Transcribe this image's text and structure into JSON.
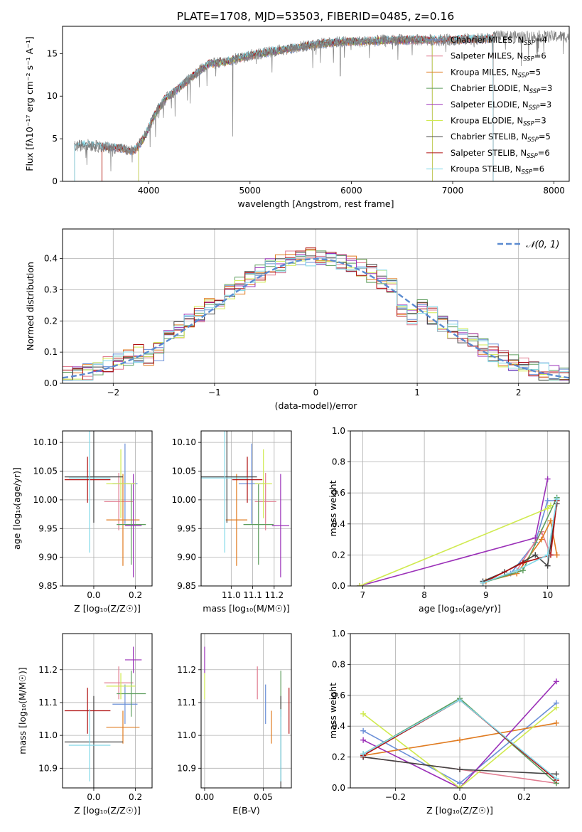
{
  "title": "PLATE=1708, MJD=53503, FIBERID=0485, z=0.16",
  "colors": {
    "chabrier_miles": "#6a8fd8",
    "salpeter_miles": "#e07b8f",
    "kroupa_miles": "#e07b20",
    "chabrier_elodie": "#5e9e5e",
    "salpeter_elodie": "#9b30b8",
    "kroupa_elodie": "#d0ea50",
    "chabrier_stelib": "#444444",
    "salpeter_stelib": "#b01010",
    "kroupa_stelib": "#80d8e8",
    "gaussian": "#5b8bd0"
  },
  "chart_data": [
    {
      "id": "spectrum",
      "type": "line",
      "title": "PLATE=1708, MJD=53503, FIBERID=0485, z=0.16",
      "xlabel": "wavelength [Angstrom, rest frame]",
      "ylabel": "Flux [fλ10⁻¹⁷ erg cm⁻² s⁻¹ A⁻¹]",
      "xlim": [
        3150,
        8150
      ],
      "ylim": [
        0,
        18.2
      ],
      "xticks": [
        4000,
        5000,
        6000,
        7000,
        8000
      ],
      "yticks": [
        0,
        5,
        10,
        15
      ],
      "grid": false,
      "legend_position": "upper-right",
      "legend": [
        {
          "label": "Chabrier MILES, N",
          "sub": "SSP",
          "value": "=4",
          "color_key": "chabrier_miles"
        },
        {
          "label": "Salpeter MILES, N",
          "sub": "SSP",
          "value": "=6",
          "color_key": "salpeter_miles"
        },
        {
          "label": "Kroupa MILES, N",
          "sub": "SSP",
          "value": "=5",
          "color_key": "kroupa_miles"
        },
        {
          "label": "Chabrier ELODIE, N",
          "sub": "SSP",
          "value": "=3",
          "color_key": "chabrier_elodie"
        },
        {
          "label": "Salpeter ELODIE, N",
          "sub": "SSP",
          "value": "=3",
          "color_key": "salpeter_elodie"
        },
        {
          "label": "Kroupa ELODIE, N",
          "sub": "SSP",
          "value": "=3",
          "color_key": "kroupa_elodie"
        },
        {
          "label": "Chabrier STELIB, N",
          "sub": "SSP",
          "value": "=5",
          "color_key": "chabrier_stelib"
        },
        {
          "label": "Salpeter STELIB, N",
          "sub": "SSP",
          "value": "=6",
          "color_key": "salpeter_stelib"
        },
        {
          "label": "Kroupa STELIB, N",
          "sub": "SSP",
          "value": "=6",
          "color_key": "kroupa_stelib"
        }
      ],
      "continuum": [
        [
          3270,
          4.1
        ],
        [
          3400,
          4.3
        ],
        [
          3550,
          4.0
        ],
        [
          3700,
          3.9
        ],
        [
          3850,
          3.5
        ],
        [
          3950,
          5.0
        ],
        [
          4050,
          7.6
        ],
        [
          4150,
          9.5
        ],
        [
          4250,
          10.5
        ],
        [
          4400,
          12.0
        ],
        [
          4500,
          13.0
        ],
        [
          4600,
          13.8
        ],
        [
          4750,
          14.0
        ],
        [
          4900,
          14.5
        ],
        [
          5000,
          14.8
        ],
        [
          5100,
          15.0
        ],
        [
          5200,
          15.2
        ],
        [
          5350,
          15.5
        ],
        [
          5500,
          15.8
        ],
        [
          5650,
          16.1
        ],
        [
          5800,
          16.3
        ],
        [
          5950,
          16.4
        ],
        [
          6100,
          16.4
        ],
        [
          6250,
          16.5
        ],
        [
          6400,
          16.6
        ],
        [
          6550,
          16.6
        ],
        [
          6700,
          16.6
        ],
        [
          6850,
          16.6
        ],
        [
          7000,
          16.6
        ],
        [
          7150,
          16.7
        ],
        [
          7300,
          16.7
        ],
        [
          7400,
          16.8
        ]
      ]
    },
    {
      "id": "residuals",
      "type": "line",
      "xlabel": "(data-model)/error",
      "ylabel": "Normed distribution",
      "xlim": [
        -2.5,
        2.5
      ],
      "ylim": [
        0,
        0.495
      ],
      "xticks": [
        -2,
        -1,
        0,
        1,
        2
      ],
      "yticks": [
        0.0,
        0.1,
        0.2,
        0.3,
        0.4
      ],
      "grid": true,
      "legend_position": "upper-right",
      "gaussian_label": "𝒩(0, 1)",
      "bin_width": 0.1,
      "bins_start": -2.5
    },
    {
      "id": "age_vs_Z",
      "type": "scatter",
      "xlabel": "Z [log₁₀(Z/Z☉)]",
      "ylabel": "age  [log₁₀(age/yr)]",
      "xlim": [
        -0.15,
        0.28
      ],
      "ylim": [
        9.85,
        10.12
      ],
      "xticks": [
        0.0,
        0.2
      ],
      "yticks": [
        9.85,
        9.9,
        9.95,
        10.0,
        10.05,
        10.1
      ],
      "grid": true
    },
    {
      "id": "age_vs_mass",
      "type": "scatter",
      "xlabel": "mass [log₁₀(M/M☉)]",
      "ylabel": "",
      "xlim": [
        10.86,
        11.28
      ],
      "ylim": [
        9.85,
        10.12
      ],
      "xticks": [
        11.0,
        11.1,
        11.2
      ],
      "yticks": [
        9.85,
        9.9,
        9.95,
        10.0,
        10.05,
        10.1
      ],
      "grid": true
    },
    {
      "id": "weight_vs_age",
      "type": "line",
      "xlabel": "age  [log₁₀(age/yr)]",
      "ylabel": "mass weight",
      "xlim": [
        6.8,
        10.35
      ],
      "ylim": [
        0,
        1
      ],
      "xticks": [
        7,
        8,
        9,
        10
      ],
      "yticks": [
        0.0,
        0.2,
        0.4,
        0.6,
        0.8,
        1.0
      ],
      "grid": true
    },
    {
      "id": "mass_vs_Z",
      "type": "scatter",
      "xlabel": "Z [log₁₀(Z/Z☉)]",
      "ylabel": "mass [log₁₀(M/M☉)]",
      "xlim": [
        -0.15,
        0.28
      ],
      "ylim": [
        10.84,
        11.31
      ],
      "xticks": [
        0.0,
        0.2
      ],
      "yticks": [
        10.9,
        11.0,
        11.1,
        11.2
      ],
      "grid": true
    },
    {
      "id": "mass_vs_ebv",
      "type": "scatter",
      "xlabel": "E(B-V)",
      "ylabel": "",
      "xlim": [
        -0.003,
        0.074
      ],
      "ylim": [
        10.84,
        11.31
      ],
      "xticks": [
        0.0,
        0.05
      ],
      "yticks": [
        10.9,
        11.0,
        11.1,
        11.2
      ],
      "grid": true
    },
    {
      "id": "weight_vs_Z",
      "type": "line",
      "xlabel": "Z [log₁₀(Z/Z☉)]",
      "ylabel": "mass weight",
      "xlim": [
        -0.34,
        0.34
      ],
      "ylim": [
        0,
        1
      ],
      "xticks": [
        -0.2,
        0.0,
        0.2
      ],
      "yticks": [
        0.0,
        0.2,
        0.4,
        0.6,
        0.8,
        1.0
      ],
      "grid": true
    }
  ],
  "fits": [
    {
      "key": "chabrier_miles",
      "Z": 0.15,
      "Zerr": 0.06,
      "age": 10.028,
      "ageErr": 0.07,
      "mass": 11.095,
      "massErr": 0.06,
      "ebv": 0.052,
      "wage": [
        [
          8.95,
          0.02
        ],
        [
          9.4,
          0.08
        ],
        [
          9.8,
          0.28
        ],
        [
          10.0,
          0.55
        ],
        [
          10.15,
          0.55
        ]
      ],
      "wZ": [
        [
          -0.3,
          0.37
        ],
        [
          0.0,
          0.03
        ],
        [
          0.3,
          0.55
        ]
      ]
    },
    {
      "key": "salpeter_miles",
      "Z": 0.12,
      "Zerr": 0.07,
      "age": 9.997,
      "ageErr": 0.05,
      "mass": 11.16,
      "massErr": 0.05,
      "ebv": 0.045,
      "wage": [
        [
          8.95,
          0.02
        ],
        [
          9.5,
          0.1
        ],
        [
          9.9,
          0.35
        ],
        [
          10.05,
          0.2
        ],
        [
          10.15,
          0.2
        ]
      ],
      "wZ": [
        [
          -0.3,
          0.2
        ],
        [
          0.0,
          0.12
        ],
        [
          0.3,
          0.03
        ]
      ]
    },
    {
      "key": "kroupa_miles",
      "Z": 0.14,
      "Zerr": 0.08,
      "age": 9.965,
      "ageErr": 0.08,
      "mass": 11.025,
      "massErr": 0.05,
      "ebv": 0.057,
      "wage": [
        [
          9.0,
          0.03
        ],
        [
          9.5,
          0.08
        ],
        [
          9.9,
          0.3
        ],
        [
          10.05,
          0.42
        ],
        [
          10.15,
          0.2
        ]
      ],
      "wZ": [
        [
          -0.3,
          0.21
        ],
        [
          0.0,
          0.31
        ],
        [
          0.3,
          0.42
        ]
      ]
    },
    {
      "key": "chabrier_elodie",
      "Z": 0.18,
      "Zerr": 0.07,
      "age": 9.957,
      "ageErr": 0.07,
      "mass": 11.127,
      "massErr": 0.07,
      "ebv": 0.065,
      "wage": [
        [
          8.95,
          0.02
        ],
        [
          9.6,
          0.1
        ],
        [
          10.15,
          0.57
        ]
      ],
      "wZ": [
        [
          -0.3,
          0.22
        ],
        [
          0.0,
          0.58
        ],
        [
          0.3,
          0.03
        ]
      ]
    },
    {
      "key": "salpeter_elodie",
      "Z": 0.19,
      "Zerr": 0.04,
      "age": 9.955,
      "ageErr": 0.09,
      "mass": 11.23,
      "massErr": 0.04,
      "ebv": 0.0,
      "wage": [
        [
          6.95,
          0.0
        ],
        [
          9.8,
          0.31
        ],
        [
          10.0,
          0.69
        ]
      ],
      "wZ": [
        [
          -0.3,
          0.31
        ],
        [
          0.0,
          0.0
        ],
        [
          0.3,
          0.69
        ]
      ]
    },
    {
      "key": "kroupa_elodie",
      "Z": 0.13,
      "Zerr": 0.07,
      "age": 10.028,
      "ageErr": 0.06,
      "mass": 11.15,
      "massErr": 0.04,
      "ebv": 0.0,
      "wage": [
        [
          6.95,
          0.0
        ],
        [
          10.0,
          0.5
        ],
        [
          10.05,
          0.52
        ]
      ],
      "wZ": [
        [
          -0.3,
          0.48
        ],
        [
          0.0,
          0.0
        ],
        [
          0.3,
          0.52
        ]
      ]
    },
    {
      "key": "chabrier_stelib",
      "Z": 0.0,
      "Zerr": 0.14,
      "age": 10.04,
      "ageErr": 0.08,
      "mass": 10.98,
      "massErr": 0.14,
      "ebv": 0.065,
      "wage": [
        [
          8.95,
          0.03
        ],
        [
          9.3,
          0.09
        ],
        [
          9.8,
          0.2
        ],
        [
          10.0,
          0.13
        ],
        [
          10.15,
          0.53
        ]
      ],
      "wZ": [
        [
          -0.3,
          0.2
        ],
        [
          0.0,
          0.12
        ],
        [
          0.3,
          0.09
        ]
      ]
    },
    {
      "key": "salpeter_stelib",
      "Z": -0.03,
      "Zerr": 0.11,
      "age": 10.035,
      "ageErr": 0.04,
      "mass": 11.075,
      "massErr": 0.07,
      "ebv": 0.072,
      "wage": [
        [
          8.95,
          0.02
        ],
        [
          9.6,
          0.15
        ],
        [
          10.05,
          0.2
        ],
        [
          10.15,
          0.55
        ]
      ],
      "wZ": [
        [
          -0.3,
          0.21
        ],
        [
          0.0,
          0.57
        ],
        [
          0.3,
          0.05
        ]
      ]
    },
    {
      "key": "kroupa_stelib",
      "Z": -0.02,
      "Zerr": 0.1,
      "age": 10.038,
      "ageErr": 0.13,
      "mass": 10.97,
      "massErr": 0.11,
      "ebv": 0.065,
      "wage": [
        [
          8.95,
          0.02
        ],
        [
          9.5,
          0.1
        ],
        [
          10.0,
          0.2
        ],
        [
          10.15,
          0.56
        ]
      ],
      "wZ": [
        [
          -0.3,
          0.22
        ],
        [
          0.0,
          0.57
        ],
        [
          0.3,
          0.06
        ]
      ]
    }
  ]
}
